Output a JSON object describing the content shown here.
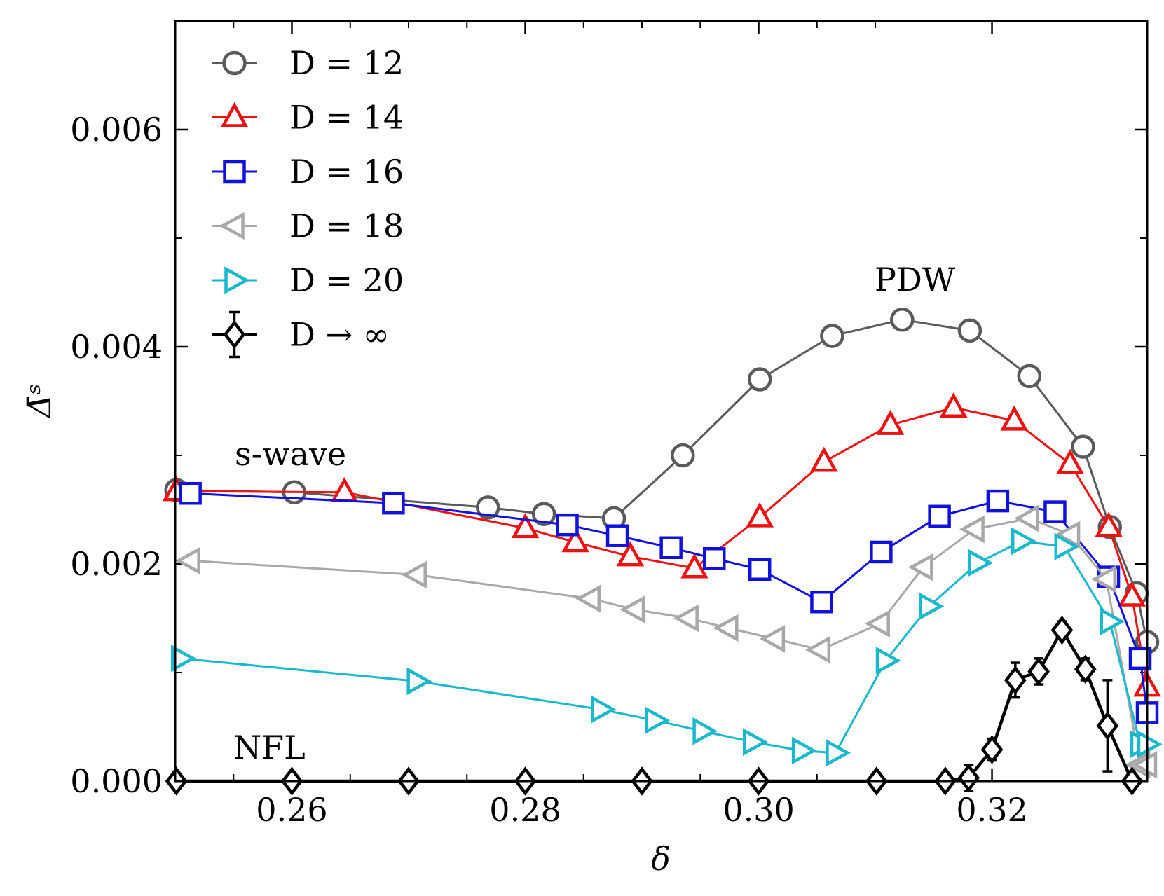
{
  "chart_data": {
    "type": "line",
    "xlabel": "δ",
    "ylabel": "Δ̄ˢ",
    "xlim": [
      0.25,
      0.3333
    ],
    "ylim": [
      0.0,
      0.007
    ],
    "xticks": [
      0.26,
      0.28,
      0.3,
      0.32
    ],
    "xtick_labels": [
      "0.26",
      "0.28",
      "0.30",
      "0.32"
    ],
    "yticks": [
      0.0,
      0.002,
      0.004,
      0.006
    ],
    "ytick_labels": [
      "0.000",
      "0.002",
      "0.004",
      "0.006"
    ],
    "legend_position": "top-left",
    "annotations": [
      {
        "text": "s-wave",
        "x": 0.2575,
        "y": 0.00293
      },
      {
        "text": "PDW",
        "x": 0.3135,
        "y": 0.00457
      },
      {
        "text": "NFL",
        "x": 0.2588,
        "y": 0.00028
      }
    ],
    "series": [
      {
        "name": "D = 12",
        "color": "#5a5a5a",
        "marker": "circle",
        "x": [
          0.2501,
          0.2602,
          0.2768,
          0.2816,
          0.2876,
          0.2935,
          0.3001,
          0.3063,
          0.3123,
          0.3181,
          0.3232,
          0.3278,
          0.3301,
          0.3324,
          0.3333
        ],
        "y": [
          0.00268,
          0.00266,
          0.00252,
          0.00246,
          0.00242,
          0.003,
          0.0037,
          0.0041,
          0.00425,
          0.00415,
          0.00373,
          0.00308,
          0.00234,
          0.00173,
          0.00128
        ]
      },
      {
        "name": "D = 14",
        "color": "#ee1111",
        "marker": "triangle-up",
        "x": [
          0.2501,
          0.2645,
          0.28,
          0.2843,
          0.289,
          0.2945,
          0.3001,
          0.3056,
          0.3113,
          0.3167,
          0.3219,
          0.3267,
          0.33,
          0.332,
          0.3333
        ],
        "y": [
          0.00267,
          0.00266,
          0.00233,
          0.0022,
          0.00207,
          0.00196,
          0.00243,
          0.00294,
          0.00328,
          0.00344,
          0.00332,
          0.00292,
          0.00234,
          0.0017,
          0.00087
        ]
      },
      {
        "name": "D = 16",
        "color": "#1111dd",
        "marker": "square",
        "x": [
          0.2513,
          0.2687,
          0.2836,
          0.2879,
          0.2925,
          0.2962,
          0.3001,
          0.3054,
          0.3105,
          0.3155,
          0.3205,
          0.3254,
          0.33,
          0.3327,
          0.3333
        ],
        "y": [
          0.00265,
          0.00256,
          0.00236,
          0.00226,
          0.00215,
          0.00205,
          0.00195,
          0.00165,
          0.00211,
          0.00244,
          0.00258,
          0.00248,
          0.00188,
          0.00113,
          0.00063
        ]
      },
      {
        "name": "D = 18",
        "color": "#a8a8a8",
        "marker": "triangle-left",
        "x": [
          0.2513,
          0.2707,
          0.2856,
          0.2894,
          0.294,
          0.2974,
          0.3014,
          0.3053,
          0.3104,
          0.3141,
          0.3185,
          0.3232,
          0.3267,
          0.3298,
          0.3327,
          0.3333
        ],
        "y": [
          0.00203,
          0.0019,
          0.00168,
          0.00158,
          0.0015,
          0.00141,
          0.00131,
          0.00121,
          0.00145,
          0.00197,
          0.00232,
          0.00242,
          0.00227,
          0.00186,
          0.00015,
          0.00015
        ]
      },
      {
        "name": "D = 20",
        "color": "#19b8cc",
        "marker": "triangle-right",
        "x": [
          0.2505,
          0.2707,
          0.2865,
          0.2911,
          0.2952,
          0.2995,
          0.3037,
          0.3066,
          0.3109,
          0.3146,
          0.3188,
          0.3225,
          0.3262,
          0.3301,
          0.3327,
          0.3333
        ],
        "y": [
          0.00113,
          0.00092,
          0.00066,
          0.00056,
          0.00046,
          0.00036,
          0.00028,
          0.00026,
          0.00111,
          0.00161,
          0.00201,
          0.00221,
          0.00216,
          0.00147,
          0.00034,
          0.00034
        ]
      },
      {
        "name": "D → ∞",
        "color": "#000000",
        "marker": "diamond",
        "x": [
          0.2501,
          0.26,
          0.27,
          0.28,
          0.29,
          0.3,
          0.3101,
          0.316,
          0.318,
          0.32,
          0.322,
          0.324,
          0.326,
          0.328,
          0.3299,
          0.332
        ],
        "y": [
          0.0,
          0.0,
          0.0,
          0.0,
          0.0,
          0.0,
          0.0,
          0.0,
          3e-05,
          0.00029,
          0.00093,
          0.00101,
          0.00139,
          0.00103,
          0.00051,
          0.0
        ],
        "yerr": [
          0,
          0,
          0,
          0,
          0,
          0,
          0,
          0,
          0.00012,
          0.0001,
          0.00016,
          0.00012,
          8e-05,
          0.0001,
          0.00042,
          0
        ]
      }
    ]
  }
}
